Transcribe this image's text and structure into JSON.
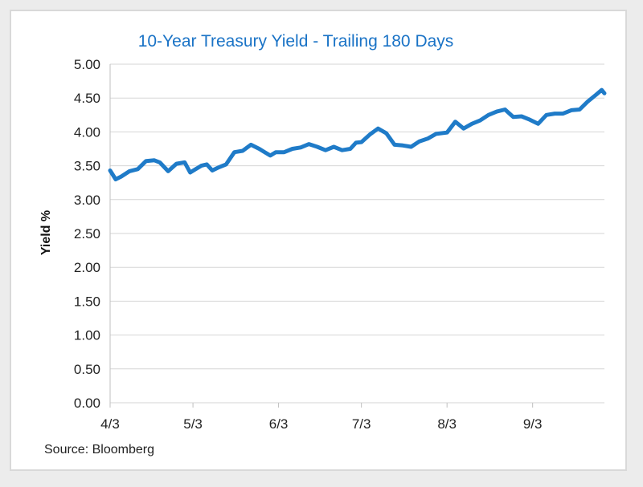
{
  "chart_data": {
    "type": "line",
    "title": "10-Year Treasury Yield - Trailing 180 Days",
    "xlabel": "",
    "ylabel": "Yield %",
    "source": "Source: Bloomberg",
    "ylim": [
      0,
      5
    ],
    "yticks": [
      "0.00",
      "0.50",
      "1.00",
      "1.50",
      "2.00",
      "2.50",
      "3.00",
      "3.50",
      "4.00",
      "4.50",
      "5.00"
    ],
    "xticks": [
      "4/3",
      "5/3",
      "6/3",
      "7/3",
      "8/3",
      "9/3"
    ],
    "xlim": [
      "2023-04-03",
      "2023-09-29"
    ],
    "grid": true,
    "line_color": "#1f7bc8",
    "series": [
      {
        "x": [
          "2023-04-03",
          "2023-04-05",
          "2023-04-07",
          "2023-04-10",
          "2023-04-13",
          "2023-04-16",
          "2023-04-19",
          "2023-04-21",
          "2023-04-24",
          "2023-04-27",
          "2023-04-30",
          "2023-05-02",
          "2023-05-04",
          "2023-05-06",
          "2023-05-08",
          "2023-05-10",
          "2023-05-12",
          "2023-05-15",
          "2023-05-18",
          "2023-05-21",
          "2023-05-24",
          "2023-05-27",
          "2023-05-29",
          "2023-05-31",
          "2023-06-02",
          "2023-06-05",
          "2023-06-08",
          "2023-06-11",
          "2023-06-14",
          "2023-06-17",
          "2023-06-20",
          "2023-06-23",
          "2023-06-26",
          "2023-06-29",
          "2023-07-01",
          "2023-07-03",
          "2023-07-06",
          "2023-07-09",
          "2023-07-12",
          "2023-07-15",
          "2023-07-18",
          "2023-07-21",
          "2023-07-24",
          "2023-07-27",
          "2023-07-30",
          "2023-08-03",
          "2023-08-06",
          "2023-08-09",
          "2023-08-12",
          "2023-08-15",
          "2023-08-18",
          "2023-08-21",
          "2023-08-24",
          "2023-08-27",
          "2023-08-30",
          "2023-09-02",
          "2023-09-05",
          "2023-09-08",
          "2023-09-11",
          "2023-09-14",
          "2023-09-17",
          "2023-09-20",
          "2023-09-23",
          "2023-09-26",
          "2023-09-28",
          "2023-09-29"
        ],
        "y": [
          3.43,
          3.3,
          3.34,
          3.42,
          3.45,
          3.57,
          3.58,
          3.55,
          3.42,
          3.53,
          3.55,
          3.4,
          3.45,
          3.5,
          3.52,
          3.43,
          3.47,
          3.52,
          3.7,
          3.72,
          3.81,
          3.75,
          3.7,
          3.65,
          3.7,
          3.7,
          3.75,
          3.77,
          3.82,
          3.78,
          3.73,
          3.78,
          3.73,
          3.75,
          3.84,
          3.85,
          3.96,
          4.05,
          3.98,
          3.81,
          3.8,
          3.78,
          3.86,
          3.9,
          3.97,
          3.99,
          4.15,
          4.05,
          4.12,
          4.17,
          4.25,
          4.3,
          4.33,
          4.22,
          4.23,
          4.18,
          4.12,
          4.25,
          4.27,
          4.27,
          4.32,
          4.33,
          4.45,
          4.55,
          4.62,
          4.57
        ]
      }
    ]
  }
}
